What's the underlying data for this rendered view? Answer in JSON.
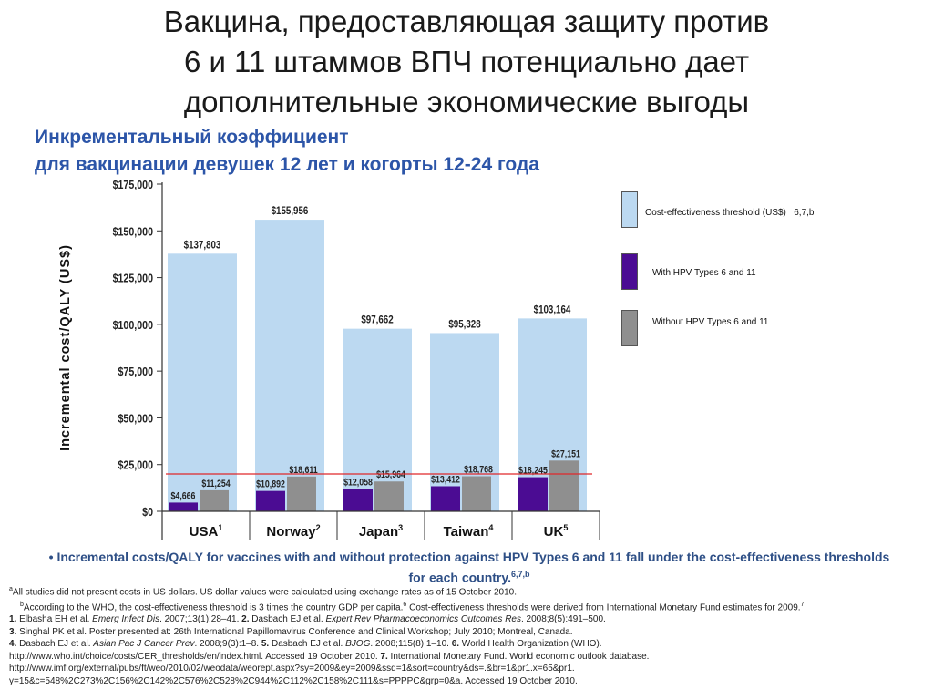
{
  "title_lines": [
    "Вакцина, предоставляющая защиту против",
    "6 и 11 штаммов ВПЧ потенциально дает",
    "дополнительные экономические выгоды"
  ],
  "subtitle_lines": [
    "Инкрементальный коэффициент",
    "для вакцинации девушек 12 лет и когорты 12-24 года"
  ],
  "colors": {
    "threshold_bar": "#bcd9f1",
    "with_bar": "#4b0c93",
    "without_bar": "#8f8f8f",
    "reference_line": "#e0282a"
  },
  "chart_data": {
    "type": "bar",
    "categories": [
      "USA",
      "Norway",
      "Japan",
      "Taiwan",
      "UK"
    ],
    "category_superscripts": [
      "1",
      "2",
      "3",
      "4",
      "5"
    ],
    "ylabel": "Incremental cost/QALY (US$)",
    "ylim": [
      0,
      175000
    ],
    "yticks": [
      0,
      25000,
      50000,
      75000,
      100000,
      125000,
      150000,
      175000
    ],
    "ytick_labels": [
      "$0",
      "$25,000",
      "$50,000",
      "$75,000",
      "$100,000",
      "$125,000",
      "$150,000",
      "$175,000"
    ],
    "series": [
      {
        "name": "Cost-effectiveness threshold (US$)",
        "values": [
          137803,
          155956,
          97662,
          95328,
          103164
        ],
        "labels": [
          "$137,803",
          "$155,956",
          "$97,662",
          "$95,328",
          "$103,164"
        ]
      },
      {
        "name": "With HPV Types 6 and 11",
        "values": [
          4666,
          10892,
          12058,
          13412,
          18245
        ],
        "labels": [
          "$4,666",
          "$10,892",
          "$12,058",
          "$13,412",
          "$18,245"
        ]
      },
      {
        "name": "Without HPV Types 6 and 11",
        "values": [
          11254,
          18611,
          15964,
          18768,
          27151
        ],
        "labels": [
          "$11,254",
          "$18,611",
          "$15,964",
          "$18,768",
          "$27,151"
        ]
      }
    ],
    "reference_line_value": 20000,
    "legend_position": "right",
    "grid": false
  },
  "legend": [
    {
      "label": "Cost-effectiveness threshold (US$)",
      "sup": "6,7,b",
      "swatch": "threshold_bar"
    },
    {
      "label": "With HPV Types 6 and 11",
      "sup": "",
      "swatch": "with_bar"
    },
    {
      "label": "Without HPV Types 6 and 11",
      "sup": "",
      "swatch": "without_bar"
    }
  ],
  "summary": {
    "bullet": "•",
    "text": "Incremental costs/QALY for vaccines with and without protection against HPV Types 6 and 11 fall under the cost-effectiveness thresholds for each country.",
    "sup": "6,7,b"
  },
  "notes": {
    "a_sup": "a",
    "a": "All studies did not present costs in US dollars. US dollar values were calculated using exchange rates as of 15 October 2010.",
    "b_sup": "b",
    "b": "According to the WHO, the cost-effectiveness threshold is 3 times the country GDP per capita.",
    "b_sup2": "6",
    "b2": " Cost-effectiveness thresholds were derived from International Monetary Fund estimates for 2009.",
    "b_sup3": "7",
    "r1_num": "1.",
    "r1_a": " Elbasha EH et al. ",
    "r1_j": "Emerg Infect Dis",
    "r1_b": ". 2007;13(1):28–41. ",
    "r2_num": "2.",
    "r2_a": " Dasbach EJ et al. ",
    "r2_j": "Expert Rev Pharmacoeconomics Outcomes Res",
    "r2_b": ". 2008;8(5):491–500.",
    "r3_num": "3.",
    "r3": " Singhal PK et al. Poster presented at: 26th International Papillomavirus Conference and Clinical Workshop; July 2010; Montreal, Canada.",
    "r4_num": "4.",
    "r4_a": " Dasbach EJ et al. ",
    "r4_j": "Asian Pac J Cancer Prev",
    "r4_b": ". 2008;9(3):1–8. ",
    "r5_num": "5.",
    "r5_a": " Dasbach EJ et al. ",
    "r5_j": "BJOG",
    "r5_b": ". 2008;115(8):1–10. ",
    "r6_num": "6.",
    "r6": " World Health Organization (WHO).",
    "line5_a": "http://www.who.int/choice/costs/CER_thresholds/en/index.html. Accessed 19 October 2010. ",
    "r7_num": "7.",
    "r7": " International Monetary Fund. World economic outlook database.",
    "line6": "http://www.imf.org/external/pubs/ft/weo/2010/02/weodata/weorept.aspx?sy=2009&ey=2009&ssd=1&sort=country&ds=.&br=1&pr1.x=65&pr1.",
    "line7": "y=15&c=548%2C273%2C156%2C142%2C576%2C528%2C944%2C112%2C158%2C111&s=PPPPC&grp=0&a. Accessed 19 October 2010."
  }
}
